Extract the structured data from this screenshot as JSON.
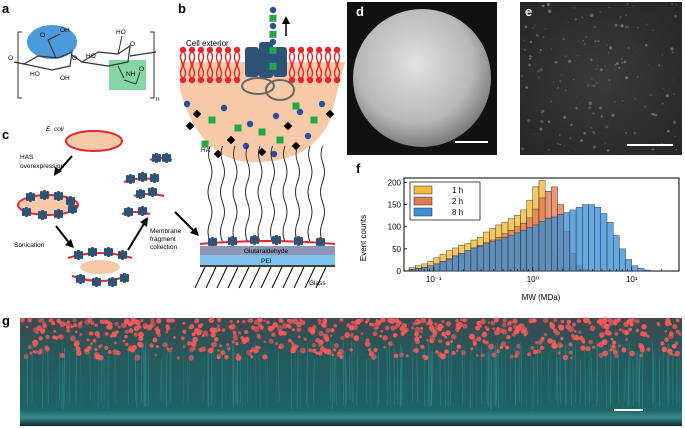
{
  "panels": {
    "a": "a",
    "b": "b",
    "c": "c",
    "d": "d",
    "e": "e",
    "f": "f",
    "g": "g"
  },
  "panel_a": {
    "o_labels": [
      "O",
      "O",
      "O",
      "O",
      "O"
    ],
    "ho_labels": [
      "HO",
      "HO",
      "HO"
    ],
    "oh_labels": [
      "OH",
      "OH"
    ],
    "nh_label": "NH",
    "repeat_n": "n",
    "carboxyl_color": "#3a8fd6",
    "acetamide_color": "#6fcf97"
  },
  "panel_b": {
    "cell_exterior": "Cell exterior",
    "membrane_color": "#e8262a",
    "cytoplasm_color": "#f6c9a8",
    "enzyme_color": "#2f5277",
    "glcua_color": "#2b4f9e",
    "glcnac_color": "#22a64a"
  },
  "panel_c": {
    "ecoli": "E. coli",
    "has_overexpression": [
      "HAS",
      "overexpression"
    ],
    "sonication": "Sonication",
    "membrane_fragment": [
      "Membrane",
      "fragment",
      "collection"
    ],
    "ha": "HA",
    "glutaraldehyde": "Glutaraldehyde",
    "pei": "PEI",
    "glass": "Glass"
  },
  "panel_f": {
    "chart_data": {
      "type": "bar",
      "ylabel": "Event counts",
      "xlabel": "MW (MDa)",
      "xscale": "log",
      "xlim": [
        0.05,
        30
      ],
      "ylim": [
        0,
        210
      ],
      "yticks": [
        "0",
        "50",
        "100",
        "150",
        "200"
      ],
      "xtick_labels": [
        "10⁻¹",
        "10⁰",
        "10¹"
      ],
      "legend_position": "top-left",
      "series": [
        {
          "name": "1 h",
          "color": "#f2b93b",
          "log_start": -1.25,
          "log_step": 0.0625,
          "values": [
            8,
            12,
            16,
            22,
            30,
            38,
            46,
            52,
            58,
            62,
            70,
            76,
            88,
            96,
            104,
            110,
            118,
            126,
            138,
            160,
            190,
            205,
            120,
            40,
            8,
            2
          ]
        },
        {
          "name": "2 h",
          "color": "#e07a4f",
          "log_start": -1.25,
          "log_step": 0.0625,
          "values": [
            4,
            6,
            8,
            12,
            16,
            22,
            28,
            34,
            40,
            46,
            52,
            58,
            64,
            70,
            76,
            84,
            92,
            100,
            108,
            120,
            140,
            165,
            180,
            190,
            150,
            90,
            40,
            12,
            4
          ]
        },
        {
          "name": "8 h",
          "color": "#3c8ed6",
          "log_start": -1.25,
          "log_step": 0.0625,
          "values": [
            4,
            6,
            8,
            12,
            16,
            22,
            26,
            34,
            40,
            46,
            52,
            56,
            62,
            66,
            70,
            76,
            80,
            86,
            92,
            98,
            104,
            112,
            118,
            122,
            128,
            132,
            138,
            144,
            150,
            150,
            144,
            130,
            110,
            80,
            50,
            26,
            12,
            6,
            2
          ]
        }
      ]
    }
  },
  "panel_g": {
    "bg_color": "#0f4a4c",
    "dot_color": "#ff5a5a"
  }
}
